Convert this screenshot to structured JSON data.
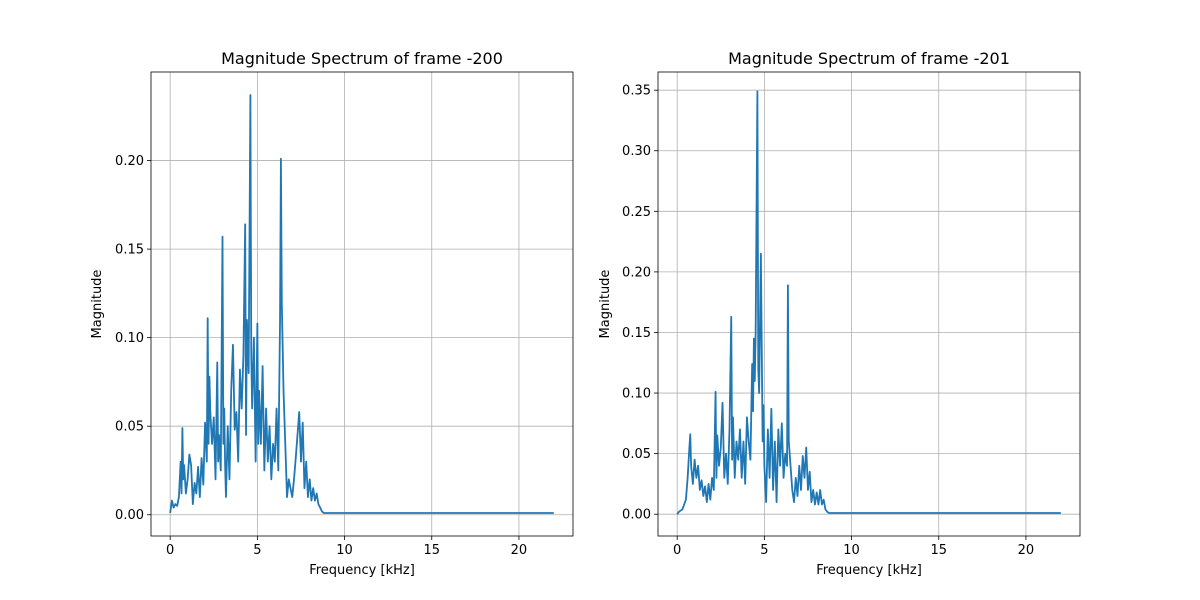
{
  "chart_data": [
    {
      "type": "line",
      "title": "Magnitude Spectrum of frame -200",
      "xlabel": "Frequency [kHz]",
      "ylabel": "Magnitude",
      "xlim": [
        -1.1,
        23.1
      ],
      "ylim": [
        -0.012,
        0.25
      ],
      "xticks": [
        0,
        5,
        10,
        15,
        20
      ],
      "xtick_labels": [
        "0",
        "5",
        "10",
        "15",
        "20"
      ],
      "yticks": [
        0.0,
        0.05,
        0.1,
        0.15,
        0.2
      ],
      "ytick_labels": [
        "0.00",
        "0.05",
        "0.10",
        "0.15",
        "0.20"
      ],
      "grid": true,
      "color": "#1f77b4",
      "x": [
        0,
        0.1,
        0.2,
        0.3,
        0.4,
        0.5,
        0.6,
        0.65,
        0.7,
        0.75,
        0.8,
        0.9,
        1.0,
        1.1,
        1.2,
        1.3,
        1.4,
        1.5,
        1.6,
        1.7,
        1.8,
        1.9,
        2.0,
        2.1,
        2.15,
        2.2,
        2.25,
        2.3,
        2.4,
        2.5,
        2.6,
        2.7,
        2.75,
        2.8,
        2.9,
        3.0,
        3.05,
        3.1,
        3.15,
        3.2,
        3.3,
        3.4,
        3.5,
        3.6,
        3.7,
        3.8,
        3.9,
        4.0,
        4.1,
        4.2,
        4.3,
        4.35,
        4.4,
        4.5,
        4.6,
        4.65,
        4.7,
        4.8,
        4.9,
        5.0,
        5.05,
        5.1,
        5.2,
        5.3,
        5.4,
        5.5,
        5.6,
        5.7,
        5.8,
        5.9,
        6.0,
        6.1,
        6.2,
        6.3,
        6.35,
        6.4,
        6.5,
        6.6,
        6.7,
        6.8,
        6.9,
        7.0,
        7.1,
        7.2,
        7.3,
        7.4,
        7.5,
        7.6,
        7.7,
        7.8,
        7.9,
        8.0,
        8.1,
        8.2,
        8.3,
        8.4,
        8.5,
        8.6,
        8.7,
        8.8,
        9.0,
        9.5,
        10,
        11,
        12,
        13,
        14,
        15,
        16,
        17,
        18,
        19,
        20,
        21,
        22
      ],
      "y": [
        0.001,
        0.008,
        0.004,
        0.006,
        0.005,
        0.01,
        0.03,
        0.012,
        0.049,
        0.02,
        0.028,
        0.012,
        0.02,
        0.034,
        0.028,
        0.006,
        0.018,
        0.012,
        0.027,
        0.01,
        0.032,
        0.017,
        0.052,
        0.03,
        0.111,
        0.04,
        0.078,
        0.058,
        0.04,
        0.055,
        0.02,
        0.086,
        0.03,
        0.045,
        0.025,
        0.157,
        0.04,
        0.06,
        0.028,
        0.01,
        0.05,
        0.02,
        0.07,
        0.096,
        0.048,
        0.058,
        0.03,
        0.082,
        0.06,
        0.09,
        0.164,
        0.045,
        0.11,
        0.08,
        0.237,
        0.09,
        0.06,
        0.1,
        0.03,
        0.108,
        0.04,
        0.07,
        0.04,
        0.084,
        0.025,
        0.06,
        0.03,
        0.05,
        0.02,
        0.04,
        0.03,
        0.06,
        0.025,
        0.11,
        0.201,
        0.12,
        0.07,
        0.04,
        0.01,
        0.02,
        0.015,
        0.01,
        0.02,
        0.032,
        0.045,
        0.058,
        0.03,
        0.052,
        0.015,
        0.03,
        0.01,
        0.02,
        0.008,
        0.015,
        0.008,
        0.012,
        0.006,
        0.004,
        0.002,
        0.001,
        0.001,
        0.001,
        0.001,
        0.001,
        0.001,
        0.001,
        0.001,
        0.001,
        0.001,
        0.001,
        0.001,
        0.001,
        0.001,
        0.001,
        0.001
      ]
    },
    {
      "type": "line",
      "title": "Magnitude Spectrum of frame -201",
      "xlabel": "Frequency [kHz]",
      "ylabel": "Magnitude",
      "xlim": [
        -1.1,
        23.1
      ],
      "ylim": [
        -0.018,
        0.365
      ],
      "xticks": [
        0,
        5,
        10,
        15,
        20
      ],
      "xtick_labels": [
        "0",
        "5",
        "10",
        "15",
        "20"
      ],
      "yticks": [
        0.0,
        0.05,
        0.1,
        0.15,
        0.2,
        0.25,
        0.3,
        0.35
      ],
      "ytick_labels": [
        "0.00",
        "0.05",
        "0.10",
        "0.15",
        "0.20",
        "0.25",
        "0.30",
        "0.35"
      ],
      "grid": true,
      "color": "#1f77b4",
      "x": [
        0,
        0.1,
        0.2,
        0.3,
        0.4,
        0.5,
        0.6,
        0.7,
        0.75,
        0.8,
        0.9,
        1.0,
        1.1,
        1.2,
        1.3,
        1.4,
        1.5,
        1.6,
        1.7,
        1.8,
        1.9,
        2.0,
        2.1,
        2.2,
        2.25,
        2.3,
        2.4,
        2.5,
        2.6,
        2.7,
        2.8,
        2.9,
        3.0,
        3.1,
        3.15,
        3.2,
        3.3,
        3.4,
        3.5,
        3.6,
        3.7,
        3.8,
        3.9,
        4.0,
        4.1,
        4.2,
        4.3,
        4.35,
        4.4,
        4.45,
        4.5,
        4.6,
        4.65,
        4.7,
        4.8,
        4.9,
        4.95,
        5.0,
        5.1,
        5.2,
        5.3,
        5.4,
        5.5,
        5.6,
        5.7,
        5.8,
        5.9,
        6.0,
        6.1,
        6.2,
        6.3,
        6.35,
        6.4,
        6.5,
        6.6,
        6.7,
        6.8,
        6.9,
        7.0,
        7.1,
        7.2,
        7.3,
        7.4,
        7.5,
        7.6,
        7.7,
        7.8,
        7.9,
        8.0,
        8.1,
        8.2,
        8.3,
        8.4,
        8.5,
        8.6,
        8.7,
        8.8,
        9.0,
        9.5,
        10,
        11,
        12,
        13,
        14,
        15,
        16,
        17,
        18,
        19,
        20,
        21,
        22
      ],
      "y": [
        0.0,
        0.002,
        0.003,
        0.004,
        0.008,
        0.012,
        0.03,
        0.055,
        0.066,
        0.04,
        0.025,
        0.045,
        0.03,
        0.04,
        0.02,
        0.028,
        0.015,
        0.023,
        0.01,
        0.025,
        0.012,
        0.03,
        0.02,
        0.101,
        0.03,
        0.065,
        0.04,
        0.055,
        0.092,
        0.03,
        0.05,
        0.025,
        0.07,
        0.163,
        0.045,
        0.08,
        0.03,
        0.06,
        0.045,
        0.07,
        0.03,
        0.06,
        0.025,
        0.08,
        0.06,
        0.045,
        0.124,
        0.085,
        0.145,
        0.11,
        0.15,
        0.349,
        0.12,
        0.1,
        0.215,
        0.06,
        0.09,
        0.04,
        0.01,
        0.07,
        0.03,
        0.087,
        0.02,
        0.06,
        0.01,
        0.07,
        0.04,
        0.075,
        0.03,
        0.05,
        0.04,
        0.189,
        0.06,
        0.04,
        0.02,
        0.01,
        0.03,
        0.015,
        0.04,
        0.02,
        0.048,
        0.03,
        0.055,
        0.02,
        0.035,
        0.01,
        0.02,
        0.008,
        0.018,
        0.008,
        0.02,
        0.008,
        0.012,
        0.004,
        0.002,
        0.001,
        0.001,
        0.001,
        0.001,
        0.001,
        0.001,
        0.001,
        0.001,
        0.001,
        0.001,
        0.001,
        0.001,
        0.001,
        0.001,
        0.001,
        0.001,
        0.001
      ]
    }
  ]
}
